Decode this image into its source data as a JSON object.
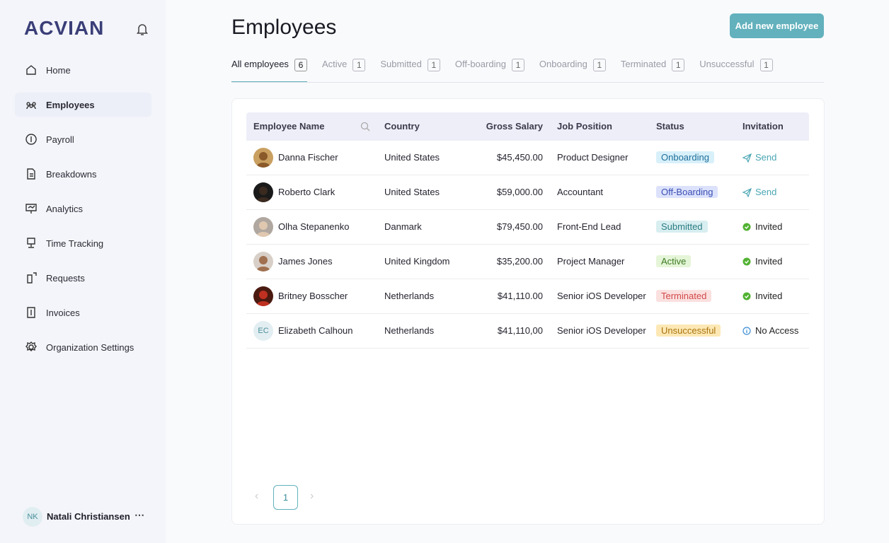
{
  "sidebar": {
    "logo": "ACVIAN",
    "nav": [
      "Home",
      "Employees",
      "Payroll",
      "Breakdowns",
      "Analytics",
      "Time Tracking",
      "Requests",
      "Invoices",
      "Organization Settings"
    ],
    "user": {
      "initials": "NK",
      "name": "Natali Christiansen"
    }
  },
  "header": {
    "title": "Employees",
    "button": "Add new employee"
  },
  "tabs": [
    {
      "label": "All employees",
      "count": 6
    },
    {
      "label": "Active",
      "count": 1
    },
    {
      "label": "Submitted",
      "count": 1
    },
    {
      "label": "Off-boarding",
      "count": 1
    },
    {
      "label": "Onboarding",
      "count": 1
    },
    {
      "label": "Terminated",
      "count": 1
    },
    {
      "label": "Unsuccessful",
      "count": 1
    }
  ],
  "table": {
    "columns": [
      "Employee Name",
      "Country",
      "Gross Salary",
      "Job Position",
      "Status",
      "Invitation"
    ],
    "rows": [
      {
        "name": "Danna Fischer",
        "country": "United States",
        "salary": "$45,450.00",
        "position": "Product Designer",
        "status": "Onboarding",
        "status_color": "#1f6f9a",
        "status_bg": "#d8f0fa",
        "invitation": "Send",
        "invitation_color": "#4aa6b4"
      },
      {
        "name": "Roberto Clark",
        "country": "United States",
        "salary": "$59,000.00",
        "position": "Accountant",
        "status": "Off-Boarding",
        "status_color": "#3b4fb5",
        "status_bg": "#dce2fb",
        "invitation": "Send",
        "invitation_color": "#4aa6b4"
      },
      {
        "name": "Olha Stepanenko",
        "country": "Danmark",
        "salary": "$79,450.00",
        "position": "Front-End Lead",
        "status": "Submitted",
        "status_color": "#2a7c84",
        "status_bg": "#d8eef0",
        "invitation": "Invited",
        "invitation_color": "#222"
      },
      {
        "name": "James Jones",
        "country": "United Kingdom",
        "salary": "$35,200.00",
        "position": "Project Manager",
        "status": "Active",
        "status_color": "#3c7a20",
        "status_bg": "#e5f5d8",
        "invitation": "Invited",
        "invitation_color": "#222"
      },
      {
        "name": "Britney Bosscher",
        "country": "Netherlands",
        "salary": "$41,110.00",
        "position": "Senior iOS Developer",
        "status": "Terminated",
        "status_color": "#d24848",
        "status_bg": "#fbe0e0",
        "invitation": "Invited",
        "invitation_color": "#222"
      },
      {
        "name": "Elizabeth Calhoun",
        "initials": "EC",
        "country": "Netherlands",
        "salary": "$41,110,00",
        "position": "Senior iOS Developer",
        "status": "Unsuccessful",
        "status_color": "#a8740e",
        "status_bg": "#fde8b5",
        "invitation": "No Access",
        "invitation_color": "#222"
      }
    ]
  },
  "pagination": {
    "pages": [
      1
    ]
  }
}
